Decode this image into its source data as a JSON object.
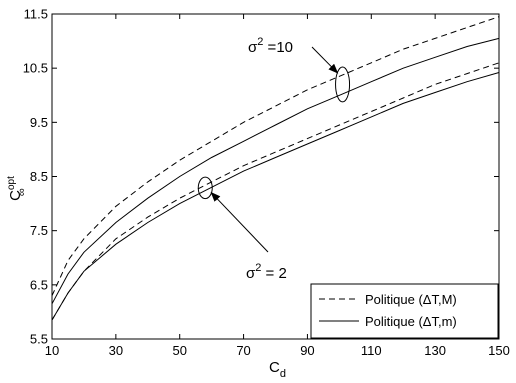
{
  "chart_data": {
    "type": "line",
    "title": "",
    "xlabel": "C",
    "xlabel_sub": "d",
    "ylabel": "C",
    "ylabel_sup": "opt",
    "ylabel_sub": "∞",
    "xlim": [
      10,
      150
    ],
    "ylim": [
      5.5,
      11.5
    ],
    "xticks": [
      10,
      30,
      50,
      70,
      90,
      110,
      130,
      150
    ],
    "yticks": [
      5.5,
      6.5,
      7.5,
      8.5,
      9.5,
      10.5,
      11.5
    ],
    "xtick_labels": [
      "10",
      "30",
      "50",
      "70",
      "90",
      "110",
      "130",
      "150"
    ],
    "ytick_labels": [
      "5.5",
      "6.5",
      "7.5",
      "8.5",
      "9.5",
      "10.5",
      "11.5"
    ],
    "grid": false,
    "legend_position": "bottom-right",
    "legend": [
      {
        "label": "Politique (ΔT,M)",
        "style": "dashed"
      },
      {
        "label": "Politique (ΔT,m)",
        "style": "solid"
      }
    ],
    "series": [
      {
        "group": "sigma2=10",
        "style": "dashed",
        "x": [
          10,
          15,
          20,
          30,
          40,
          50,
          60,
          70,
          80,
          90,
          100,
          110,
          120,
          130,
          140,
          150
        ],
        "y": [
          6.3,
          6.95,
          7.35,
          7.95,
          8.4,
          8.8,
          9.15,
          9.5,
          9.8,
          10.1,
          10.35,
          10.6,
          10.85,
          11.05,
          11.25,
          11.45
        ]
      },
      {
        "group": "sigma2=10",
        "style": "solid",
        "x": [
          10,
          15,
          20,
          30,
          40,
          50,
          60,
          70,
          80,
          90,
          100,
          110,
          120,
          130,
          140,
          150
        ],
        "y": [
          6.15,
          6.7,
          7.1,
          7.65,
          8.1,
          8.5,
          8.85,
          9.15,
          9.45,
          9.75,
          10.0,
          10.25,
          10.5,
          10.7,
          10.9,
          11.05
        ]
      },
      {
        "group": "sigma2=2",
        "style": "dashed",
        "x": [
          10,
          15,
          20,
          30,
          40,
          50,
          60,
          70,
          80,
          90,
          100,
          110,
          120,
          130,
          140,
          150
        ],
        "y": [
          5.85,
          6.35,
          6.75,
          7.35,
          7.75,
          8.1,
          8.4,
          8.7,
          8.95,
          9.2,
          9.45,
          9.7,
          9.95,
          10.2,
          10.4,
          10.6
        ]
      },
      {
        "group": "sigma2=2",
        "style": "solid",
        "x": [
          10,
          15,
          20,
          30,
          40,
          50,
          60,
          70,
          80,
          90,
          100,
          110,
          120,
          130,
          140,
          150
        ],
        "y": [
          5.85,
          6.35,
          6.75,
          7.25,
          7.65,
          8.0,
          8.3,
          8.6,
          8.85,
          9.1,
          9.35,
          9.6,
          9.85,
          10.05,
          10.25,
          10.42
        ]
      }
    ],
    "annotations": [
      {
        "sigma_symbol": "σ",
        "exponent": "2",
        "text": " =10",
        "target_x": 101
      },
      {
        "sigma_symbol": "σ",
        "exponent": "2",
        "text": " = 2",
        "target_x": 58
      }
    ]
  }
}
